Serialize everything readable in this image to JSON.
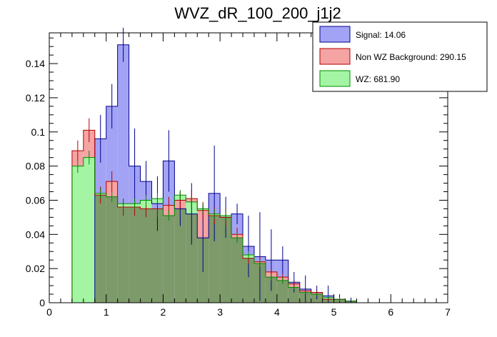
{
  "chart_data": {
    "type": "histogram",
    "title": "WVZ_dR_100_200_j1j2",
    "xlabel": "",
    "ylabel": "",
    "xlim": [
      0,
      7
    ],
    "ylim": [
      0,
      0.158
    ],
    "x_ticks": [
      0,
      1,
      2,
      3,
      4,
      5,
      6,
      7
    ],
    "y_ticks": [
      0,
      0.02,
      0.04,
      0.06,
      0.08,
      0.1,
      0.12,
      0.14
    ],
    "y_tick_labels": [
      "0",
      "0.02",
      "0.04",
      "0.06",
      "0.08",
      "0.1",
      "0.12",
      "0.14"
    ],
    "grid": false,
    "legend_position": "top-right",
    "bin_edges": [
      0.4,
      0.6,
      0.8,
      1.0,
      1.2,
      1.4,
      1.6,
      1.8,
      2.0,
      2.2,
      2.4,
      2.6,
      2.8,
      3.0,
      3.2,
      3.4,
      3.6,
      3.8,
      4.0,
      4.2,
      4.4,
      4.6,
      4.8,
      5.0,
      5.2,
      5.4,
      5.6,
      5.8,
      6.0,
      6.2,
      6.4,
      6.6,
      6.8
    ],
    "series": [
      {
        "name": "Signal: 14.06",
        "fill": "#a3a3f5",
        "stroke": "#00008c",
        "values": [
          0.0,
          0.0,
          0.096,
          0.115,
          0.151,
          0.08,
          0.071,
          0.058,
          0.083,
          0.055,
          0.052,
          0.038,
          0.064,
          0.05,
          0.052,
          0.033,
          0.027,
          0.025,
          0.025,
          0.012,
          0.008,
          0.006,
          0.004,
          0.002,
          0.001,
          0.0,
          0.0,
          0.0,
          0.0,
          0.0,
          0.0,
          0.0
        ],
        "errors": [
          0.0,
          0.0,
          0.014,
          0.013,
          0.01,
          0.022,
          0.012,
          0.016,
          0.018,
          0.01,
          0.018,
          0.02,
          0.028,
          0.012,
          0.006,
          0.018,
          0.026,
          0.018,
          0.008,
          0.006,
          0.008,
          0.004,
          0.006,
          0.003,
          0.002,
          0.0,
          0.0,
          0.0,
          0.0,
          0.0,
          0.0,
          0.0
        ]
      },
      {
        "name": "Non WZ Background: 290.15",
        "fill": "#f5a3a3",
        "stroke": "#b40000",
        "values": [
          0.089,
          0.101,
          0.063,
          0.071,
          0.056,
          0.056,
          0.055,
          0.055,
          0.057,
          0.06,
          0.061,
          0.054,
          0.051,
          0.05,
          0.04,
          0.026,
          0.024,
          0.018,
          0.015,
          0.011,
          0.007,
          0.006,
          0.002,
          0.002,
          0.001,
          0.0,
          0.0,
          0.0,
          0.0,
          0.0,
          0.0,
          0.0
        ],
        "errors": [
          0.006,
          0.007,
          0.005,
          0.006,
          0.005,
          0.005,
          0.005,
          0.005,
          0.005,
          0.005,
          0.005,
          0.005,
          0.005,
          0.005,
          0.004,
          0.003,
          0.003,
          0.002,
          0.002,
          0.002,
          0.001,
          0.001,
          0.001,
          0.001,
          0.0,
          0.0,
          0.0,
          0.0,
          0.0,
          0.0,
          0.0,
          0.0
        ]
      },
      {
        "name": "WZ: 681.90",
        "fill": "#a3f5a3",
        "stroke": "#008c00",
        "values": [
          0.08,
          0.085,
          0.064,
          0.062,
          0.058,
          0.058,
          0.06,
          0.061,
          0.051,
          0.063,
          0.059,
          0.055,
          0.052,
          0.051,
          0.038,
          0.028,
          0.023,
          0.015,
          0.013,
          0.009,
          0.006,
          0.005,
          0.003,
          0.002,
          0.001,
          0.0,
          0.0,
          0.0,
          0.0,
          0.0,
          0.0,
          0.0
        ],
        "errors": [
          0.004,
          0.004,
          0.003,
          0.003,
          0.003,
          0.003,
          0.003,
          0.003,
          0.003,
          0.003,
          0.003,
          0.003,
          0.003,
          0.003,
          0.003,
          0.002,
          0.002,
          0.002,
          0.002,
          0.001,
          0.001,
          0.001,
          0.001,
          0.001,
          0.0,
          0.0,
          0.0,
          0.0,
          0.0,
          0.0,
          0.0,
          0.0
        ]
      }
    ],
    "overlap_color": "#7d9a6a"
  }
}
